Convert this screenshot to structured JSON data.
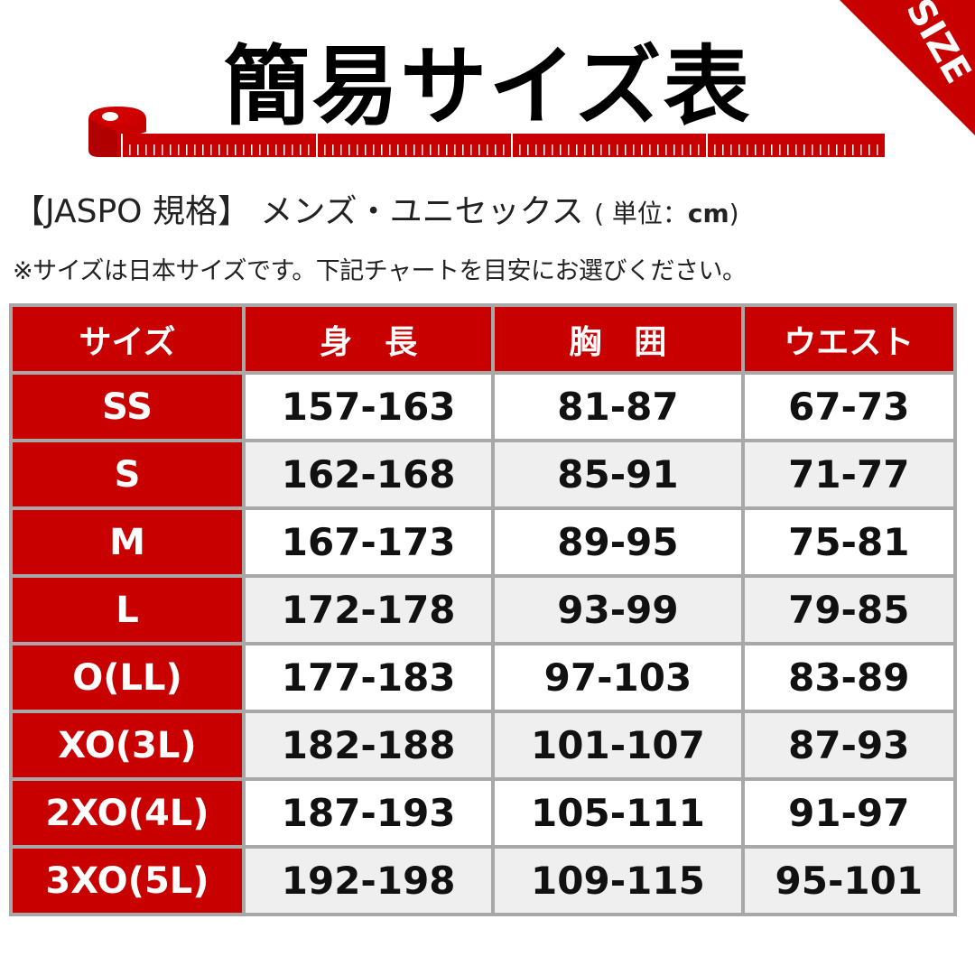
{
  "title": "簡易サイズ表",
  "corner_badge": "SIZE",
  "subtitle": {
    "standard": "【JASPO 規格】",
    "category": "メンズ・ユニセックス",
    "unit_prefix": "( 単位：",
    "unit": "cm",
    "unit_suffix": ")"
  },
  "note": "※サイズは日本サイズです。下記チャートを目安にお選びください。",
  "colors": {
    "accent": "#c80000",
    "alt_row": "#f0eff0",
    "grid": "#a8a8a8"
  },
  "table": {
    "headers": [
      "サイズ",
      "身　長",
      "胸　囲",
      "ウエスト"
    ],
    "rows": [
      [
        "SS",
        "157-163",
        "81-87",
        "67-73"
      ],
      [
        "S",
        "162-168",
        "85-91",
        "71-77"
      ],
      [
        "M",
        "167-173",
        "89-95",
        "75-81"
      ],
      [
        "L",
        "172-178",
        "93-99",
        "79-85"
      ],
      [
        "O(LL)",
        "177-183",
        "97-103",
        "83-89"
      ],
      [
        "XO(3L)",
        "182-188",
        "101-107",
        "87-93"
      ],
      [
        "2XO(4L)",
        "187-193",
        "105-111",
        "91-97"
      ],
      [
        "3XO(5L)",
        "192-198",
        "109-115",
        "95-101"
      ]
    ]
  }
}
